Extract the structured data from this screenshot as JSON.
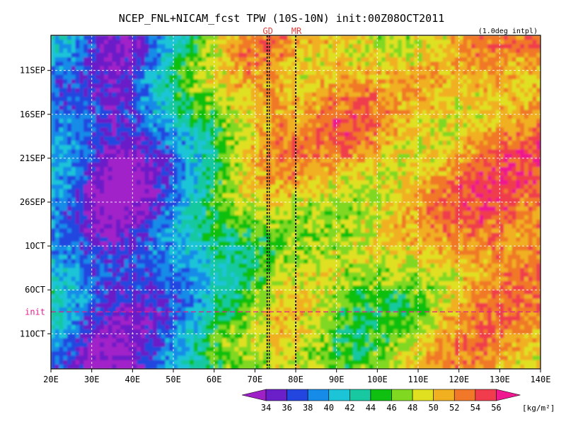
{
  "chart_data": {
    "type": "heatmap",
    "title": "NCEP_FNL+NICAM_fcst TPW (10S-10N) init:00Z08OCT2011",
    "note": "(1.0deg intpl)",
    "x_ticks": [
      "20E",
      "30E",
      "40E",
      "50E",
      "60E",
      "70E",
      "80E",
      "90E",
      "100E",
      "110E",
      "120E",
      "130E",
      "140E"
    ],
    "x_range": [
      20,
      140
    ],
    "y_ticks": [
      {
        "label": "11SEP",
        "day": 4
      },
      {
        "label": "16SEP",
        "day": 9
      },
      {
        "label": "21SEP",
        "day": 14
      },
      {
        "label": "26SEP",
        "day": 19
      },
      {
        "label": "1OCT",
        "day": 24
      },
      {
        "label": "6OCT",
        "day": 29
      },
      {
        "label": "11OCT",
        "day": 34
      }
    ],
    "time_range_days": [
      0,
      38
    ],
    "init": {
      "label": "init",
      "day": 31.5
    },
    "vertical_markers": [
      {
        "label": "GD",
        "lon": 73
      },
      {
        "label": "MR",
        "lon": 80
      }
    ],
    "colorbar": {
      "unit": "[kg/m²]",
      "levels": [
        34,
        36,
        38,
        40,
        42,
        44,
        46,
        48,
        50,
        52,
        54,
        56
      ],
      "colors": [
        "#a020c8",
        "#6a1fc8",
        "#2346e0",
        "#168ce8",
        "#1cc4d8",
        "#18c8a0",
        "#10c010",
        "#80d820",
        "#e0e020",
        "#f0b020",
        "#f07828",
        "#f03c4c",
        "#f01890"
      ]
    },
    "tpw_by_longitude": {
      "lon": [
        20,
        25,
        30,
        35,
        40,
        45,
        50,
        55,
        60,
        65,
        70,
        75,
        80,
        85,
        90,
        95,
        100,
        105,
        110,
        115,
        120,
        125,
        130,
        135,
        140
      ],
      "early_period": [
        40,
        39,
        37,
        34,
        35,
        38,
        41,
        44,
        46,
        49,
        51,
        52,
        51,
        51,
        52,
        52,
        51,
        50,
        50,
        50,
        51,
        52,
        53,
        53,
        54
      ],
      "late_period": [
        40,
        38,
        35,
        34,
        34,
        36,
        38,
        40,
        43,
        44,
        46,
        48,
        49,
        48,
        47,
        46,
        47,
        48,
        49,
        51,
        52,
        53,
        53,
        52,
        52
      ]
    }
  }
}
